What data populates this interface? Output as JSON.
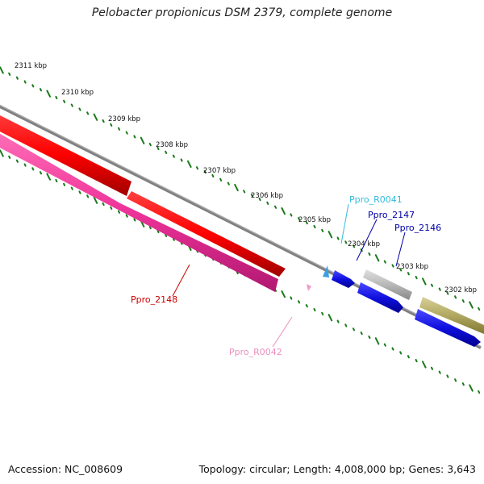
{
  "title": "Pelobacter propionicus DSM 2379, complete genome",
  "footer": {
    "accession": "Accession: NC_008609",
    "summary": "Topology: circular; Length: 4,008,000 bp; Genes: 3,643"
  },
  "ruler": {
    "ticks": [
      "2311 kbp",
      "2310 kbp",
      "2309 kbp",
      "2308 kbp",
      "2307 kbp",
      "2306 kbp",
      "2305 kbp",
      "2304 kbp",
      "2303 kbp",
      "2302 kbp"
    ],
    "color": "#1a7a1a"
  },
  "features": [
    {
      "id": "Ppro_2148",
      "label": "Ppro_2148",
      "type": "CDS",
      "strand": "reverse",
      "color": "#ee0000",
      "label_color": "#cc0000"
    },
    {
      "id": "Ppro_R0042",
      "label": "Ppro_R0042",
      "type": "tRNA",
      "strand": "reverse",
      "color": "#ee3399",
      "label_color": "#e98fbf"
    },
    {
      "id": "Ppro_R0041",
      "label": "Ppro_R0041",
      "type": "tRNA",
      "strand": "forward",
      "color": "#3aa0e0",
      "label_color": "#33bbdd"
    },
    {
      "id": "Ppro_2147",
      "label": "Ppro_2147",
      "type": "CDS",
      "strand": "forward",
      "color": "#1010e0",
      "label_color": "#0000aa"
    },
    {
      "id": "Ppro_2146",
      "label": "Ppro_2146",
      "type": "CDS",
      "strand": "forward",
      "color": "#1010e0",
      "label_color": "#0000aa"
    }
  ],
  "colors": {
    "backbone": "#777777",
    "cds_red": "#ee0000",
    "cds_pink": "#ee3399",
    "cds_blue": "#1010e0",
    "gray_feature": "#aaaaaa",
    "olive_feature": "#b0a860"
  }
}
